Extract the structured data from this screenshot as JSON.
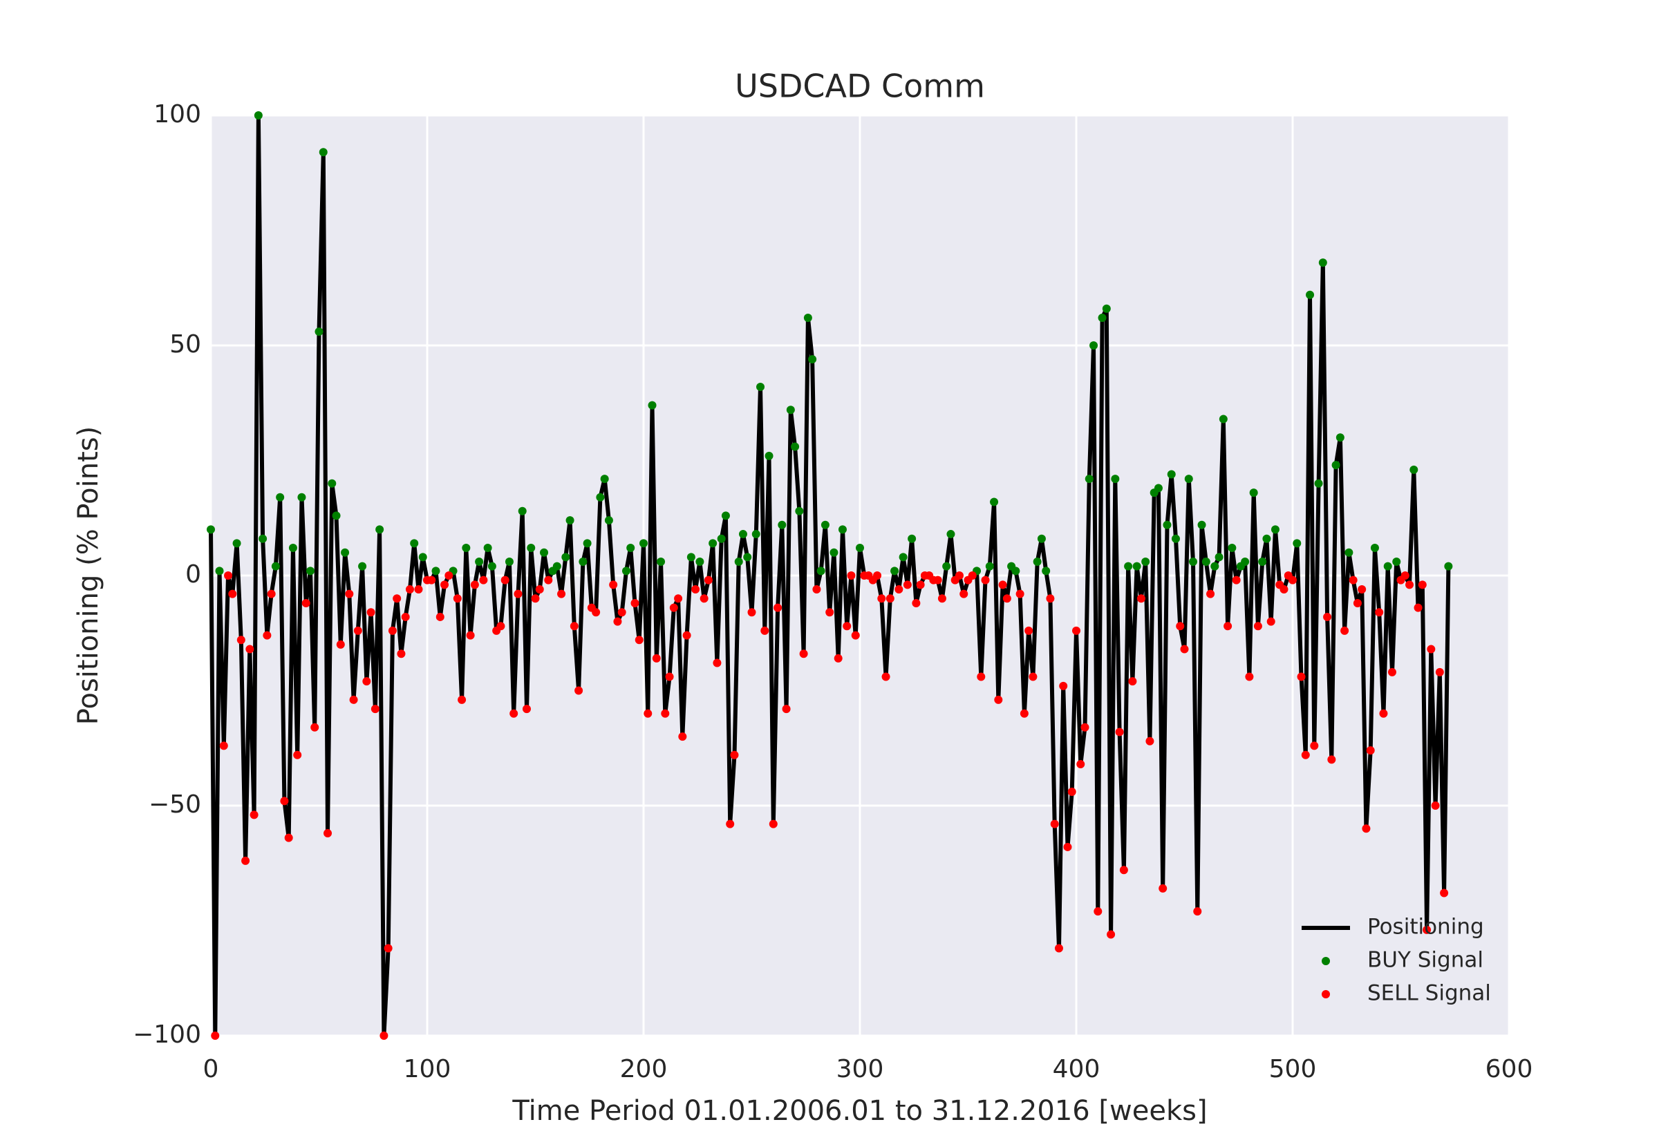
{
  "chart_data": {
    "type": "line",
    "title": "USDCAD Comm",
    "x_label": "Time Period 01.01.2006.01 to 31.12.2016 [weeks]",
    "y_label": "Positioning (% Points)",
    "xlim": [
      0,
      600
    ],
    "xticks": [
      0,
      100,
      200,
      300,
      400,
      500,
      600
    ],
    "ylim": [
      -100,
      100
    ],
    "yticks": [
      {
        "value": -100,
        "label": "−100"
      },
      {
        "value": -50,
        "label": "−50"
      },
      0,
      50,
      100
    ],
    "grid": true,
    "background": "#eaeaf2",
    "legend": "lower right",
    "x": [
      0,
      2,
      4,
      6,
      8,
      10,
      12,
      14,
      16,
      18,
      20,
      22,
      24,
      26,
      28,
      30,
      32,
      34,
      36,
      38,
      40,
      42,
      44,
      46,
      48,
      50,
      52,
      54,
      56,
      58,
      60,
      62,
      64,
      66,
      68,
      70,
      72,
      74,
      76,
      78,
      80,
      82,
      84,
      86,
      88,
      90,
      92,
      94,
      96,
      98,
      100,
      102,
      104,
      106,
      108,
      110,
      112,
      114,
      116,
      118,
      120,
      122,
      124,
      126,
      128,
      130,
      132,
      134,
      136,
      138,
      140,
      142,
      144,
      146,
      148,
      150,
      152,
      154,
      156,
      158,
      160,
      162,
      164,
      166,
      168,
      170,
      172,
      174,
      176,
      178,
      180,
      182,
      184,
      186,
      188,
      190,
      192,
      194,
      196,
      198,
      200,
      202,
      204,
      206,
      208,
      210,
      212,
      214,
      216,
      218,
      220,
      222,
      224,
      226,
      228,
      230,
      232,
      234,
      236,
      238,
      240,
      242,
      244,
      246,
      248,
      250,
      252,
      254,
      256,
      258,
      260,
      262,
      264,
      266,
      268,
      270,
      272,
      274,
      276,
      278,
      280,
      282,
      284,
      286,
      288,
      290,
      292,
      294,
      296,
      298,
      300,
      302,
      304,
      306,
      308,
      310,
      312,
      314,
      316,
      318,
      320,
      322,
      324,
      326,
      328,
      330,
      332,
      334,
      336,
      338,
      340,
      342,
      344,
      346,
      348,
      350,
      352,
      354,
      356,
      358,
      360,
      362,
      364,
      366,
      368,
      370,
      372,
      374,
      376,
      378,
      380,
      382,
      384,
      386,
      388,
      390,
      392,
      394,
      396,
      398,
      400,
      402,
      404,
      406,
      408,
      410,
      412,
      414,
      416,
      418,
      420,
      422,
      424,
      426,
      428,
      430,
      432,
      434,
      436,
      438,
      440,
      442,
      444,
      446,
      448,
      450,
      452,
      454,
      456,
      458,
      460,
      462,
      464,
      466,
      468,
      470,
      472,
      474,
      476,
      478,
      480,
      482,
      484,
      486,
      488,
      490,
      492,
      494,
      496,
      498,
      500,
      502,
      504,
      506,
      508,
      510,
      512,
      514,
      516,
      518,
      520,
      522,
      524,
      526,
      528,
      530,
      532,
      534,
      536,
      538,
      540,
      542,
      544,
      546,
      548,
      550,
      552,
      554,
      556,
      558,
      560,
      562,
      564,
      566,
      568,
      570,
      572
    ],
    "series": [
      {
        "name": "Positioning",
        "color": "#000000",
        "mark": "line",
        "values": [
          10,
          -100,
          1,
          -37,
          0,
          -4,
          7,
          -14,
          -62,
          -16,
          -52,
          100,
          8,
          -13,
          -4,
          2,
          17,
          -49,
          -57,
          6,
          -39,
          17,
          -6,
          1,
          -33,
          53,
          92,
          -56,
          20,
          13,
          -15,
          5,
          -4,
          -27,
          -12,
          2,
          -23,
          -8,
          -29,
          10,
          -100,
          -81,
          -12,
          -5,
          -17,
          -9,
          -3,
          7,
          -3,
          4,
          -1,
          -1,
          1,
          -9,
          -2,
          0,
          1,
          -5,
          -27,
          6,
          -13,
          -2,
          3,
          -1,
          6,
          2,
          -12,
          -11,
          -1,
          3,
          -30,
          -4,
          14,
          -29,
          6,
          -5,
          -3,
          5,
          -1,
          1,
          2,
          -4,
          4,
          12,
          -11,
          -25,
          3,
          7,
          -7,
          -8,
          17,
          21,
          12,
          -2,
          -10,
          -8,
          1,
          6,
          -6,
          -14,
          7,
          -30,
          37,
          -18,
          3,
          -30,
          -22,
          -7,
          -5,
          -35,
          -13,
          4,
          -3,
          3,
          -5,
          -1,
          7,
          -19,
          8,
          13,
          -54,
          -39,
          3,
          9,
          4,
          -8,
          9,
          41,
          -12,
          26,
          -54,
          -7,
          11,
          -29,
          36,
          28,
          14,
          -17,
          56,
          47,
          -3,
          1,
          11,
          -8,
          5,
          -18,
          10,
          -11,
          0,
          -13,
          6,
          0,
          0,
          -1,
          0,
          -5,
          -22,
          -5,
          1,
          -3,
          4,
          -2,
          8,
          -6,
          -2,
          0,
          0,
          -1,
          -1,
          -5,
          2,
          9,
          -1,
          0,
          -4,
          -1,
          0,
          1,
          -22,
          -1,
          2,
          16,
          -27,
          -2,
          -5,
          2,
          1,
          -4,
          -30,
          -12,
          -22,
          3,
          8,
          1,
          -5,
          -54,
          -81,
          -24,
          -59,
          -47,
          -12,
          -41,
          -33,
          21,
          50,
          -73,
          56,
          58,
          -78,
          21,
          -34,
          -64,
          2,
          -23,
          2,
          -5,
          3,
          -36,
          18,
          19,
          -68,
          11,
          22,
          8,
          -11,
          -16,
          21,
          3,
          -73,
          11,
          3,
          -4,
          2,
          4,
          34,
          -11,
          6,
          -1,
          2,
          3,
          -22,
          18,
          -11,
          3,
          8,
          -10,
          10,
          -2,
          -3,
          0,
          -1,
          7,
          -22,
          -39,
          61,
          -37,
          20,
          68,
          -9,
          -40,
          24,
          30,
          -12,
          5,
          -1,
          -6,
          -3,
          -55,
          -38,
          6,
          -8,
          -30,
          2,
          -21,
          3,
          -1,
          0,
          -2,
          23,
          -7,
          -2,
          -77,
          -16,
          -50,
          -21,
          -69,
          2
        ]
      },
      {
        "name": "BUY Signal",
        "color": "#008000",
        "mark": "dot",
        "values": [
          10,
          null,
          1,
          null,
          null,
          null,
          7,
          null,
          null,
          null,
          null,
          100,
          8,
          null,
          null,
          2,
          17,
          null,
          null,
          6,
          null,
          17,
          null,
          1,
          null,
          53,
          92,
          null,
          20,
          13,
          null,
          5,
          null,
          null,
          null,
          2,
          null,
          null,
          null,
          10,
          null,
          null,
          null,
          null,
          null,
          null,
          null,
          7,
          null,
          4,
          null,
          null,
          1,
          null,
          null,
          null,
          1,
          null,
          null,
          6,
          null,
          null,
          3,
          null,
          6,
          2,
          null,
          null,
          null,
          3,
          null,
          null,
          14,
          null,
          6,
          null,
          null,
          5,
          null,
          1,
          2,
          null,
          4,
          12,
          null,
          null,
          3,
          7,
          null,
          null,
          17,
          21,
          12,
          null,
          null,
          null,
          1,
          6,
          null,
          null,
          7,
          null,
          37,
          null,
          3,
          null,
          null,
          null,
          null,
          null,
          null,
          4,
          null,
          3,
          null,
          null,
          7,
          null,
          8,
          13,
          null,
          null,
          3,
          9,
          4,
          null,
          9,
          41,
          null,
          26,
          null,
          null,
          11,
          null,
          36,
          28,
          14,
          null,
          56,
          47,
          null,
          1,
          11,
          null,
          5,
          null,
          10,
          null,
          null,
          null,
          6,
          null,
          null,
          null,
          null,
          null,
          null,
          null,
          1,
          null,
          4,
          null,
          8,
          null,
          null,
          null,
          null,
          null,
          null,
          null,
          2,
          9,
          null,
          null,
          null,
          null,
          null,
          1,
          null,
          null,
          2,
          16,
          null,
          null,
          null,
          2,
          1,
          null,
          null,
          null,
          null,
          3,
          8,
          1,
          null,
          null,
          null,
          null,
          null,
          null,
          null,
          null,
          null,
          21,
          50,
          null,
          56,
          58,
          null,
          21,
          null,
          null,
          2,
          null,
          2,
          null,
          3,
          null,
          18,
          19,
          null,
          11,
          22,
          8,
          null,
          null,
          21,
          3,
          null,
          11,
          3,
          null,
          2,
          4,
          34,
          null,
          6,
          null,
          2,
          3,
          null,
          18,
          null,
          3,
          8,
          null,
          10,
          null,
          null,
          null,
          null,
          7,
          null,
          null,
          61,
          null,
          20,
          68,
          null,
          null,
          24,
          30,
          null,
          5,
          null,
          null,
          null,
          null,
          null,
          6,
          null,
          null,
          2,
          null,
          3,
          null,
          null,
          null,
          23,
          null,
          null,
          null,
          null,
          null,
          null,
          null,
          2
        ]
      },
      {
        "name": "SELL Signal",
        "color": "#ff0000",
        "mark": "dot",
        "values": [
          null,
          -100,
          null,
          -37,
          0,
          -4,
          null,
          -14,
          -62,
          -16,
          -52,
          null,
          null,
          -13,
          -4,
          null,
          null,
          -49,
          -57,
          null,
          -39,
          null,
          -6,
          null,
          -33,
          null,
          null,
          -56,
          null,
          null,
          -15,
          null,
          -4,
          -27,
          -12,
          null,
          -23,
          -8,
          -29,
          null,
          -100,
          -81,
          -12,
          -5,
          -17,
          -9,
          -3,
          null,
          -3,
          null,
          -1,
          -1,
          null,
          -9,
          -2,
          0,
          null,
          -5,
          -27,
          null,
          -13,
          -2,
          null,
          -1,
          null,
          null,
          -12,
          -11,
          -1,
          null,
          -30,
          -4,
          null,
          -29,
          null,
          -5,
          -3,
          null,
          -1,
          null,
          null,
          -4,
          null,
          null,
          -11,
          -25,
          null,
          null,
          -7,
          -8,
          null,
          null,
          null,
          -2,
          -10,
          -8,
          null,
          null,
          -6,
          -14,
          null,
          -30,
          null,
          -18,
          null,
          -30,
          -22,
          -7,
          -5,
          -35,
          -13,
          null,
          -3,
          null,
          -5,
          -1,
          null,
          -19,
          null,
          null,
          -54,
          -39,
          null,
          null,
          null,
          -8,
          null,
          null,
          -12,
          null,
          -54,
          -7,
          null,
          -29,
          null,
          null,
          null,
          -17,
          null,
          null,
          -3,
          null,
          null,
          -8,
          null,
          -18,
          null,
          -11,
          0,
          -13,
          null,
          0,
          0,
          -1,
          0,
          -5,
          -22,
          -5,
          null,
          -3,
          null,
          -2,
          null,
          -6,
          -2,
          0,
          0,
          -1,
          -1,
          -5,
          null,
          null,
          -1,
          0,
          -4,
          -1,
          0,
          null,
          -22,
          -1,
          null,
          null,
          -27,
          -2,
          -5,
          null,
          null,
          -4,
          -30,
          -12,
          -22,
          null,
          null,
          null,
          -5,
          -54,
          -81,
          -24,
          -59,
          -47,
          -12,
          -41,
          -33,
          null,
          null,
          -73,
          null,
          null,
          -78,
          null,
          -34,
          -64,
          null,
          -23,
          null,
          -5,
          null,
          -36,
          null,
          null,
          -68,
          null,
          null,
          null,
          -11,
          -16,
          null,
          null,
          -73,
          null,
          null,
          -4,
          null,
          null,
          null,
          -11,
          null,
          -1,
          null,
          null,
          -22,
          null,
          -11,
          null,
          null,
          -10,
          null,
          -2,
          -3,
          0,
          -1,
          null,
          -22,
          -39,
          null,
          -37,
          null,
          null,
          -9,
          -40,
          null,
          null,
          -12,
          null,
          -1,
          -6,
          -3,
          -55,
          -38,
          null,
          -8,
          -30,
          null,
          -21,
          null,
          -1,
          0,
          -2,
          null,
          -7,
          -2,
          -77,
          -16,
          -50,
          -21,
          -69,
          null
        ]
      }
    ]
  }
}
